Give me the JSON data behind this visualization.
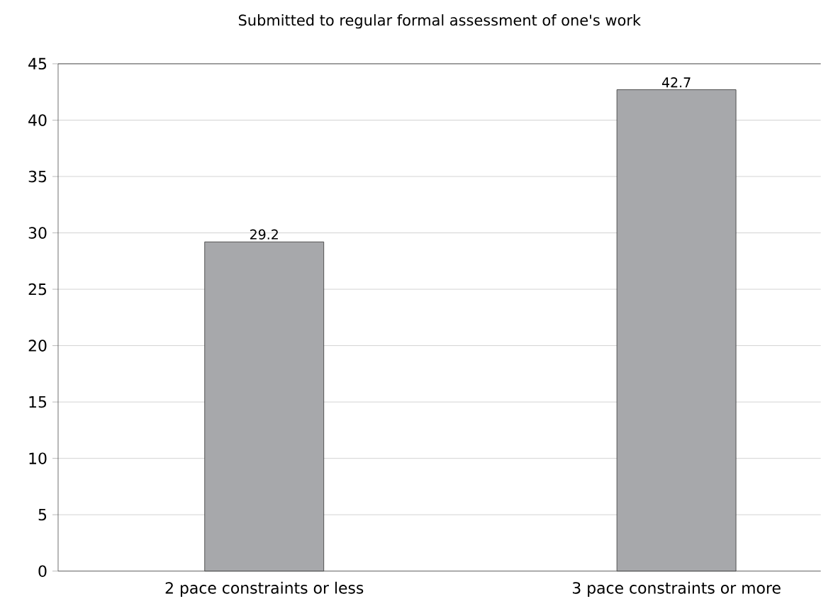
{
  "chart_data": {
    "type": "bar",
    "title": "Submitted to regular formal assessment of one's work",
    "categories": [
      "2 pace constraints or less",
      "3 pace constraints or more"
    ],
    "values": [
      29.2,
      42.7
    ],
    "color": "#a7a8ab",
    "ylim": [
      0,
      45
    ],
    "yticks": [
      0,
      5,
      10,
      15,
      20,
      25,
      30,
      35,
      40,
      45
    ],
    "grid": "y",
    "data_labels": true
  }
}
